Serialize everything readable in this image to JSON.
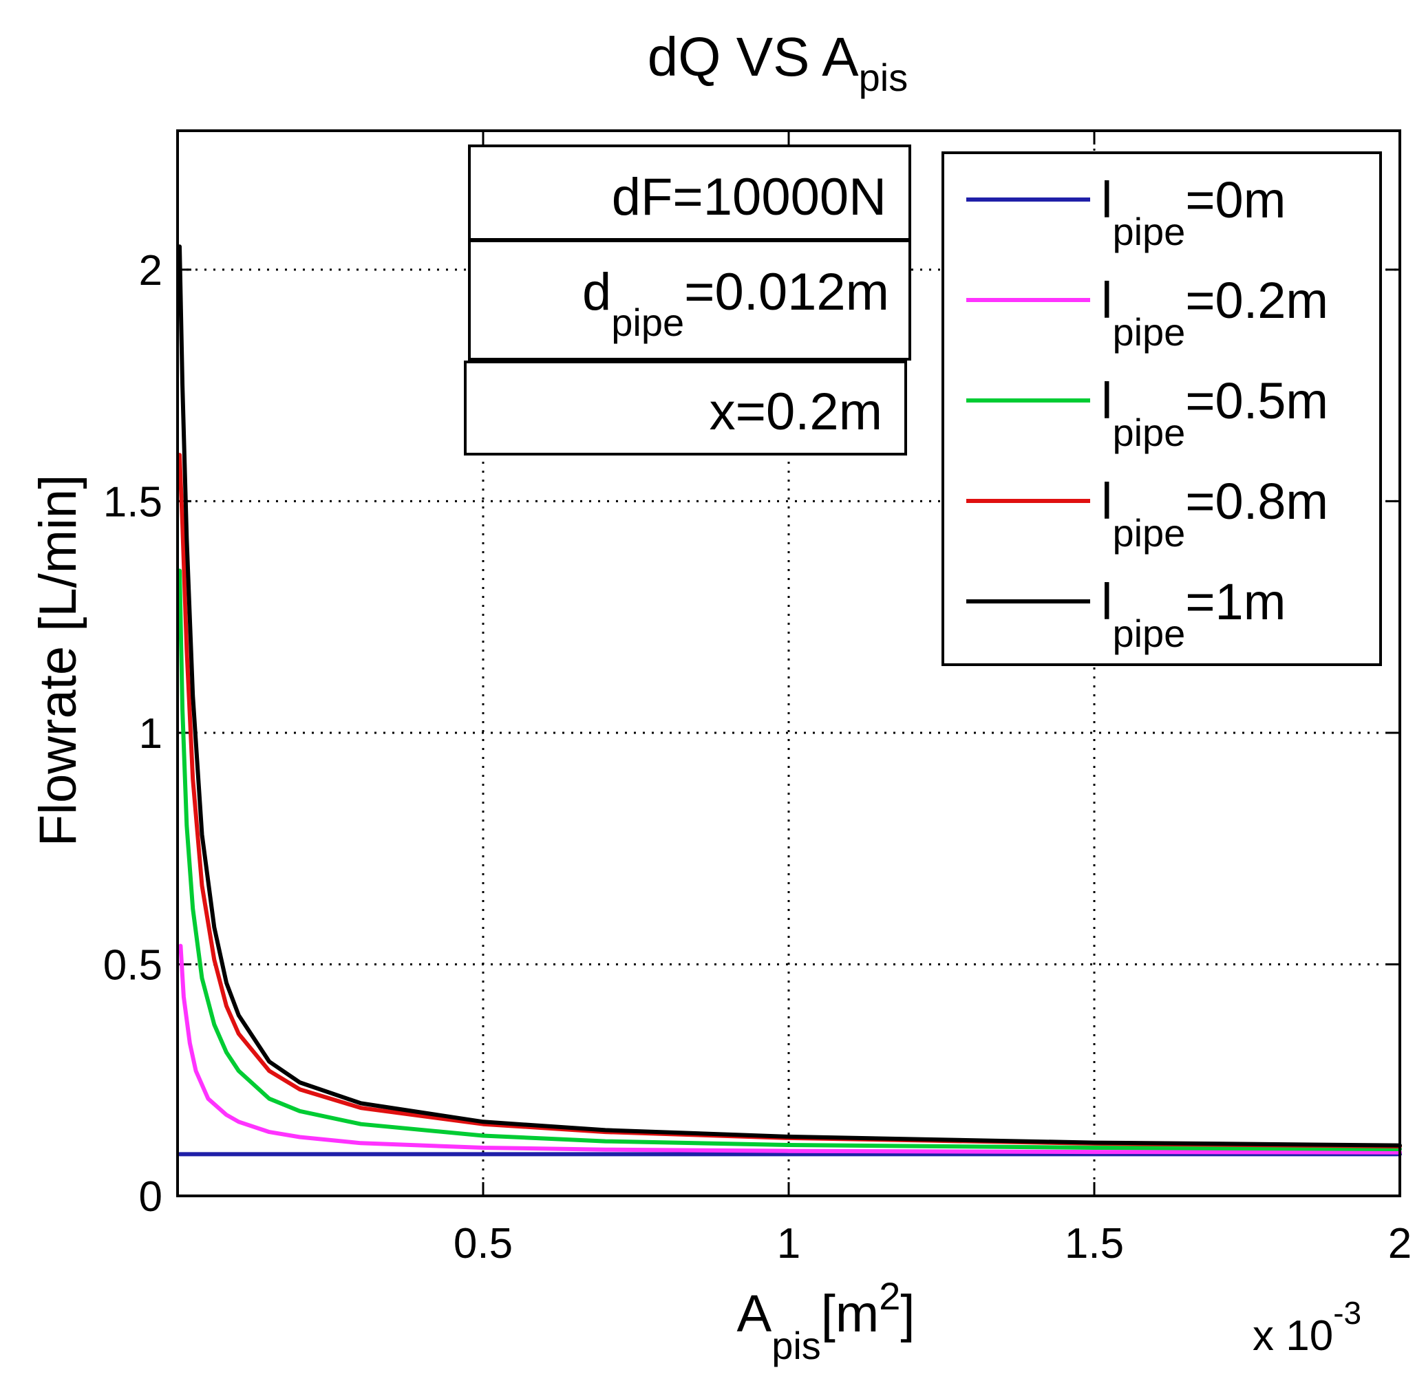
{
  "chart_data": {
    "type": "line",
    "title": {
      "main": "dQ VS  A",
      "sub": "pis"
    },
    "xlabel": {
      "main": "A",
      "sub": "pis",
      "unit_open": "[m",
      "unit_sup": "2",
      "unit_close": "]"
    },
    "ylabel": "Flowrate  [L/min]",
    "x_exponent": {
      "base": "x 10",
      "exp": "-3"
    },
    "xlim": [
      5e-05,
      2.0
    ],
    "ylim": [
      0,
      2.3
    ],
    "xticks": [
      0.5,
      1,
      1.5,
      2
    ],
    "xtick_labels": [
      "0.5",
      "1",
      "1.5",
      "2"
    ],
    "yticks": [
      0,
      0.5,
      1,
      1.5,
      2
    ],
    "ytick_labels": [
      "0",
      "0.5",
      "1",
      "1.5",
      "2"
    ],
    "grid": true,
    "grid_style": "dotted",
    "legend_position": "top-right",
    "annotation_box": {
      "line1": "dF=10000N",
      "line2": {
        "main": "d",
        "sub": "pipe",
        "rest": "=0.012m"
      },
      "line3": "x=0.2m"
    },
    "series": [
      {
        "legend": {
          "main": "l",
          "sub": "pipe",
          "rest": "=0m"
        },
        "color": "#1f1fa8",
        "x": [
          5e-05,
          0.02,
          0.05,
          0.1,
          0.2,
          0.3,
          0.5,
          0.8,
          1.0,
          1.5,
          2.0
        ],
        "y": [
          0.09,
          0.09,
          0.09,
          0.09,
          0.09,
          0.09,
          0.09,
          0.09,
          0.09,
          0.09,
          0.09
        ]
      },
      {
        "legend": {
          "main": "l",
          "sub": "pipe",
          "rest": "=0.2m"
        },
        "color": "#ff33ff",
        "x": [
          0.005,
          0.01,
          0.02,
          0.03,
          0.05,
          0.08,
          0.1,
          0.15,
          0.2,
          0.3,
          0.5,
          0.7,
          1.0,
          1.5,
          2.0
        ],
        "y": [
          0.54,
          0.43,
          0.33,
          0.27,
          0.21,
          0.175,
          0.16,
          0.138,
          0.127,
          0.114,
          0.104,
          0.1,
          0.097,
          0.095,
          0.094
        ]
      },
      {
        "legend": {
          "main": "l",
          "sub": "pipe",
          "rest": "=0.5m"
        },
        "color": "#00cc33",
        "x": [
          0.003,
          0.008,
          0.015,
          0.025,
          0.04,
          0.06,
          0.08,
          0.1,
          0.15,
          0.2,
          0.3,
          0.5,
          0.7,
          1.0,
          1.5,
          2.0
        ],
        "y": [
          1.35,
          1.05,
          0.8,
          0.62,
          0.47,
          0.37,
          0.31,
          0.27,
          0.21,
          0.183,
          0.155,
          0.13,
          0.118,
          0.11,
          0.104,
          0.101
        ]
      },
      {
        "legend": {
          "main": "l",
          "sub": "pipe",
          "rest": "=0.8m"
        },
        "color": "#e01010",
        "x": [
          0.002,
          0.008,
          0.015,
          0.025,
          0.04,
          0.06,
          0.08,
          0.1,
          0.15,
          0.2,
          0.3,
          0.5,
          0.7,
          1.0,
          1.5,
          2.0
        ],
        "y": [
          1.6,
          1.45,
          1.18,
          0.9,
          0.67,
          0.51,
          0.41,
          0.35,
          0.27,
          0.23,
          0.19,
          0.155,
          0.138,
          0.125,
          0.113,
          0.107
        ]
      },
      {
        "legend": {
          "main": "l",
          "sub": "pipe",
          "rest": "=1m"
        },
        "color": "#000000",
        "x": [
          0.002,
          0.008,
          0.015,
          0.025,
          0.04,
          0.06,
          0.08,
          0.1,
          0.15,
          0.2,
          0.3,
          0.5,
          0.7,
          1.0,
          1.5,
          2.0
        ],
        "y": [
          2.05,
          1.75,
          1.42,
          1.08,
          0.78,
          0.58,
          0.46,
          0.39,
          0.29,
          0.245,
          0.2,
          0.16,
          0.142,
          0.128,
          0.115,
          0.109
        ]
      }
    ]
  }
}
